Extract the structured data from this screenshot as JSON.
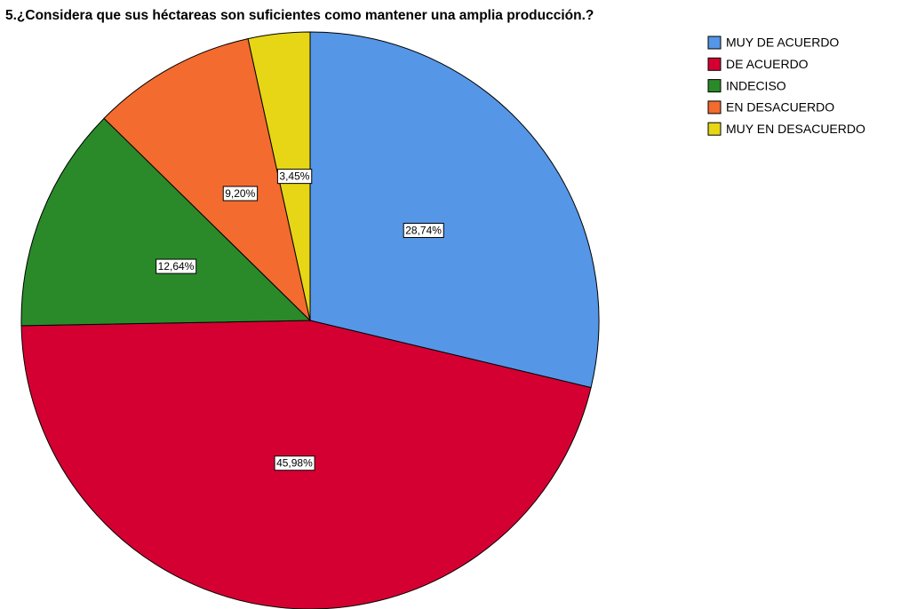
{
  "chart_data": {
    "type": "pie",
    "title": "5.¿Considera que sus héctareas son suficientes como mantener una amplia producción.?",
    "categories": [
      "MUY DE ACUERDO",
      "DE ACUERDO",
      "INDECISO",
      "EN DESACUERDO",
      "MUY EN DESACUERDO"
    ],
    "values": [
      28.74,
      45.98,
      12.64,
      9.2,
      3.45
    ],
    "value_labels": [
      "28,74%",
      "45,98%",
      "12,64%",
      "9,20%",
      "3,45%"
    ],
    "colors": [
      "#5596e6",
      "#d50032",
      "#2a8a2a",
      "#f36b2f",
      "#e6d615"
    ],
    "legend": "right"
  }
}
